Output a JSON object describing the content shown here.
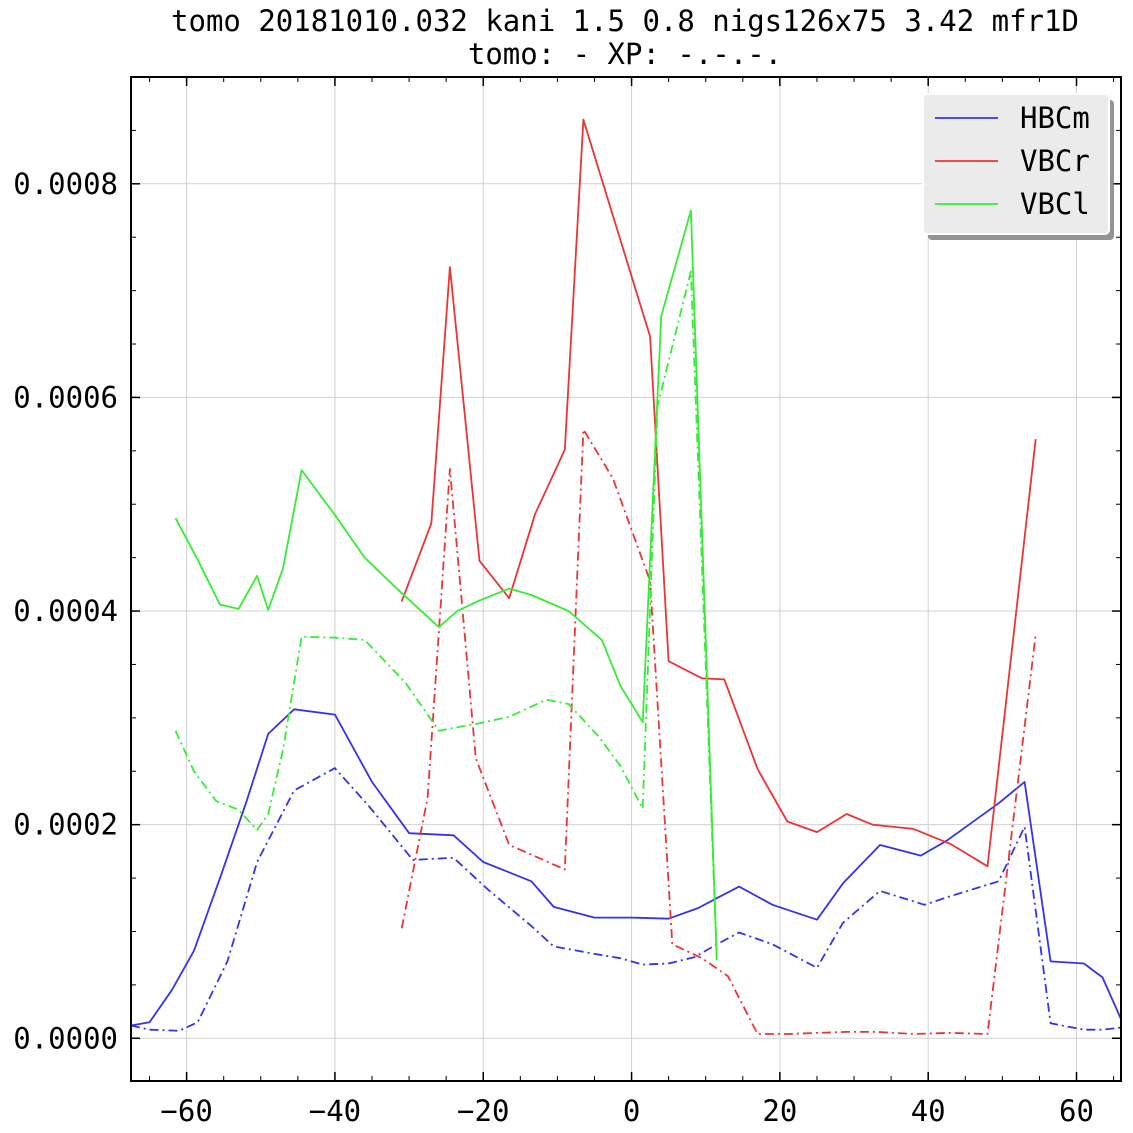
{
  "chart_data": {
    "type": "line",
    "title": "tomo 20181010.032 kani 1.5 0.8  nigs126x75 3.42 mfr1D",
    "subtitle": "tomo: -   XP: -.-.-.",
    "xlim": [
      -67.5,
      66
    ],
    "ylim": [
      -4e-05,
      0.0009
    ],
    "x_ticks": [
      -60,
      -40,
      -20,
      0,
      20,
      40,
      60
    ],
    "x_tick_labels": [
      "−60",
      "−40",
      "−20",
      "0",
      "20",
      "40",
      "60"
    ],
    "y_ticks": [
      0,
      0.0002,
      0.0004,
      0.0006,
      0.0008
    ],
    "y_tick_labels": [
      "0.0000",
      "0.0002",
      "0.0004",
      "0.0006",
      "0.0008"
    ],
    "grid": true,
    "legend_position": "top-right",
    "series": [
      {
        "name": "HBCm",
        "color": "#3333ee",
        "style": "solid",
        "x": [
          -67.5,
          -65.0,
          -62.0,
          -59.0,
          -55.5,
          -52.0,
          -49.0,
          -45.5,
          -40.0,
          -35.0,
          -30.0,
          -24.0,
          -20.0,
          -13.5,
          -10.5,
          -5.0,
          0.0,
          5.0,
          9.0,
          12.0,
          14.5,
          19.0,
          25.0,
          28.5,
          33.5,
          39.0,
          42.5,
          49.5,
          53.0,
          56.5,
          61.0,
          63.5,
          66.0
        ],
        "y": [
          1.2e-05,
          1.5e-05,
          4.5e-05,
          8.2e-05,
          0.00015,
          0.00022,
          0.000285,
          0.000308,
          0.000303,
          0.00024,
          0.000192,
          0.00019,
          0.000165,
          0.000147,
          0.000123,
          0.000113,
          0.000113,
          0.000112,
          0.000122,
          0.000133,
          0.000142,
          0.000125,
          0.000111,
          0.000145,
          0.000181,
          0.000171,
          0.000185,
          0.00022,
          0.00024,
          7.2e-05,
          7e-05,
          5.7e-05,
          1.8e-05
        ]
      },
      {
        "name": "HBCm",
        "color": "#3333ee",
        "style": "dashdot",
        "x": [
          -67.5,
          -65.0,
          -61.0,
          -58.5,
          -54.5,
          -50.5,
          -45.5,
          -40.0,
          -35.5,
          -29.5,
          -24.0,
          -19.5,
          -13.5,
          -10.5,
          -5.0,
          -1.5,
          1.5,
          5.0,
          8.5,
          11.5,
          14.5,
          19.0,
          25.0,
          28.5,
          33.5,
          39.5,
          43.0,
          49.5,
          53.0,
          56.5,
          61.0,
          63.5,
          66.0
        ],
        "y": [
          1.2e-05,
          8e-06,
          7e-06,
          1.5e-05,
          7.2e-05,
          0.000165,
          0.000232,
          0.000253,
          0.000218,
          0.000167,
          0.000169,
          0.00014,
          0.000105,
          8.6e-05,
          7.9e-05,
          7.5e-05,
          6.9e-05,
          7e-05,
          7.6e-05,
          8.8e-05,
          9.9e-05,
          8.8e-05,
          6.6e-05,
          0.000108,
          0.000138,
          0.000125,
          0.000133,
          0.000147,
          0.000198,
          1.4e-05,
          8e-06,
          8e-06,
          1e-05
        ]
      },
      {
        "name": "VBCr",
        "color": "#ee3333",
        "style": "solid",
        "x": [
          -31.0,
          -27.0,
          -24.5,
          -20.5,
          -16.5,
          -13.0,
          -9.0,
          -6.5,
          2.5,
          5.0,
          9.5,
          12.5,
          17.0,
          21.0,
          25.0,
          29.0,
          32.5,
          38.0,
          43.0,
          48.0,
          54.5
        ],
        "y": [
          0.000409,
          0.000482,
          0.000722,
          0.000447,
          0.000412,
          0.000491,
          0.000551,
          0.00086,
          0.000657,
          0.000353,
          0.000337,
          0.000336,
          0.000252,
          0.000203,
          0.000193,
          0.00021,
          0.0002,
          0.000196,
          0.000182,
          0.000161,
          0.000561
        ]
      },
      {
        "name": "VBCr",
        "color": "#ee3333",
        "style": "dashdot",
        "x": [
          -31.0,
          -27.5,
          -24.5,
          -21.0,
          -16.5,
          -13.5,
          -9.0,
          -6.5,
          -2.5,
          2.5,
          5.5,
          9.5,
          13.0,
          17.0,
          21.0,
          25.0,
          29.0,
          33.0,
          38.0,
          43.0,
          48.0,
          54.5
        ],
        "y": [
          0.000103,
          0.000225,
          0.000533,
          0.000262,
          0.000181,
          0.000172,
          0.000158,
          0.00057,
          0.000524,
          0.000428,
          8.8e-05,
          7.5e-05,
          5.8e-05,
          4e-06,
          4e-06,
          5e-06,
          6e-06,
          6e-06,
          4e-06,
          5e-06,
          4e-06,
          0.000378
        ]
      },
      {
        "name": "VBCl",
        "color": "#33ee33",
        "style": "solid",
        "x": [
          -61.5,
          -58.5,
          -55.5,
          -53.0,
          -50.5,
          -49.0,
          -47.0,
          -44.5,
          -40.0,
          -36.0,
          -31.5,
          -26.0,
          -23.5,
          -20.5,
          -16.5,
          -13.5,
          -8.5,
          -4.0,
          -1.5,
          1.5,
          4.0,
          8.0,
          11.5
        ],
        "y": [
          0.000487,
          0.000448,
          0.000406,
          0.000402,
          0.000433,
          0.000401,
          0.00044,
          0.000532,
          0.00049,
          0.00045,
          0.00042,
          0.000385,
          0.0004,
          0.00041,
          0.000421,
          0.000415,
          0.0004,
          0.000373,
          0.00033,
          0.000296,
          0.000676,
          0.000775,
          7.3e-05
        ]
      },
      {
        "name": "VBCl",
        "color": "#33ee33",
        "style": "dashdot",
        "x": [
          -61.5,
          -59.0,
          -56.0,
          -53.0,
          -50.5,
          -49.0,
          -47.0,
          -44.5,
          -40.0,
          -36.0,
          -30.5,
          -26.0,
          -20.5,
          -16.5,
          -11.5,
          -8.5,
          -4.5,
          -1.5,
          1.5,
          3.5,
          8.0,
          11.5
        ],
        "y": [
          0.000288,
          0.00025,
          0.000222,
          0.000214,
          0.000195,
          0.00021,
          0.00027,
          0.000376,
          0.000375,
          0.000373,
          0.000333,
          0.000288,
          0.000295,
          0.000301,
          0.000317,
          0.000313,
          0.000283,
          0.000255,
          0.000215,
          0.000592,
          0.000718,
          7.3e-05
        ]
      }
    ],
    "legend": [
      {
        "label": "HBCm",
        "color": "#3333ee"
      },
      {
        "label": "VBCr",
        "color": "#ee3333"
      },
      {
        "label": "VBCl",
        "color": "#33ee33"
      }
    ]
  }
}
